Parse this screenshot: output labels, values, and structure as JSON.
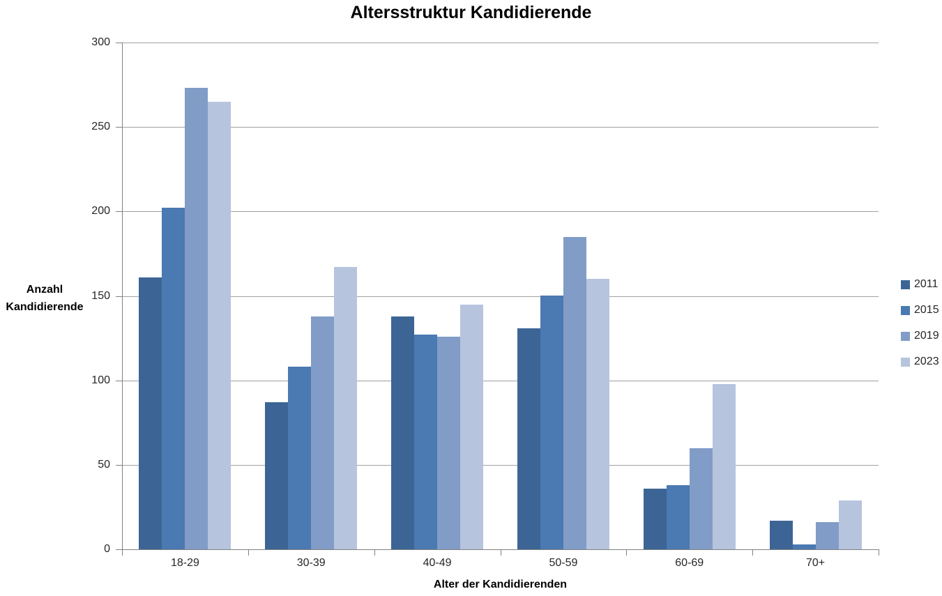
{
  "chart_data": {
    "type": "bar",
    "title": "Altersstruktur Kandidierende",
    "xlabel": "Alter der Kandidierenden",
    "ylabel": "Anzahl Kandidierende",
    "categories": [
      "18-29",
      "30-39",
      "40-49",
      "50-59",
      "60-69",
      "70+"
    ],
    "series": [
      {
        "name": "2011",
        "color": "#3C6595",
        "values": [
          161,
          87,
          138,
          131,
          36,
          17
        ]
      },
      {
        "name": "2015",
        "color": "#4B79B1",
        "values": [
          202,
          108,
          127,
          150,
          38,
          3
        ]
      },
      {
        "name": "2019",
        "color": "#819CC7",
        "values": [
          273,
          138,
          126,
          185,
          60,
          16
        ]
      },
      {
        "name": "2023",
        "color": "#B7C4DE",
        "values": [
          265,
          167,
          145,
          160,
          98,
          29
        ]
      }
    ],
    "ylim": [
      0,
      300
    ],
    "yticks": [
      0,
      50,
      100,
      150,
      200,
      250,
      300
    ],
    "grid": true,
    "legend_position": "right"
  },
  "colors": {
    "background": "#FFFFFF",
    "gridline": "#A0A0A0",
    "axis": "#808080",
    "tick_text": "#262626",
    "title_text": "#000000"
  }
}
